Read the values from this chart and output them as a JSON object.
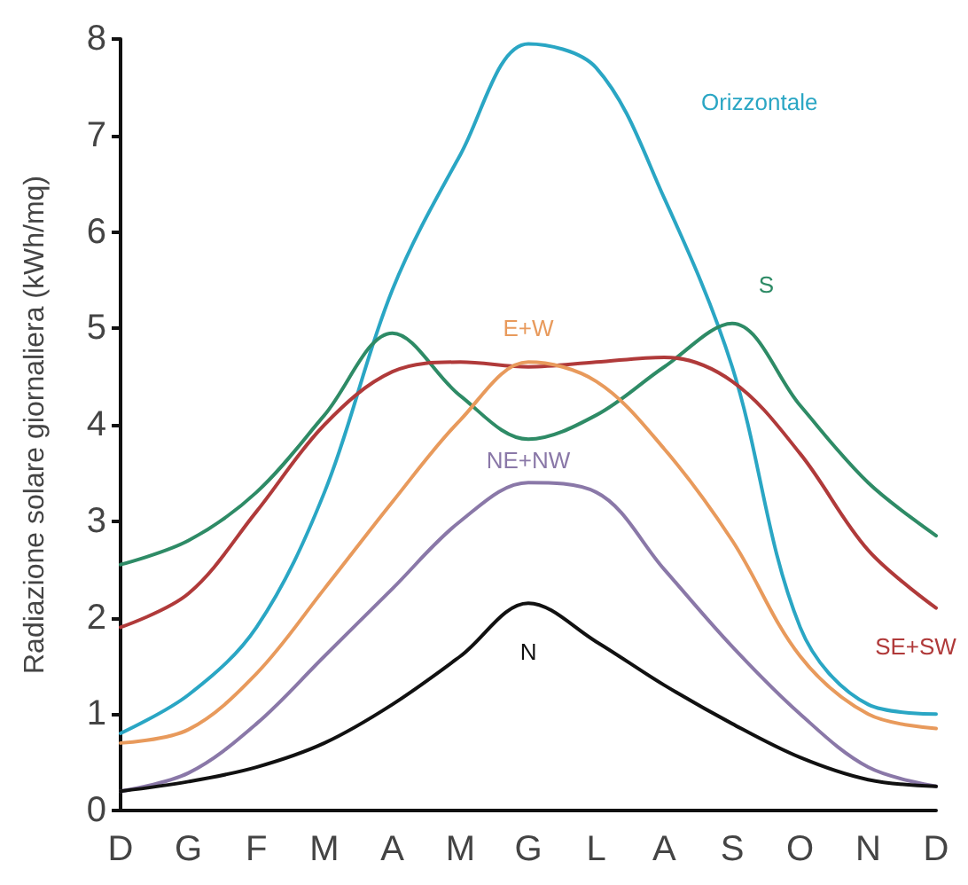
{
  "chart_data": {
    "type": "line",
    "ylabel": "Radiazione solare giornaliera (kWh/mq)",
    "categories": [
      "D",
      "G",
      "F",
      "M",
      "A",
      "M",
      "G",
      "L",
      "A",
      "S",
      "O",
      "N",
      "D"
    ],
    "ylim": [
      0,
      8
    ],
    "yticks": [
      0,
      1,
      2,
      3,
      4,
      5,
      6,
      7,
      8
    ],
    "grid": false,
    "legend": false,
    "marker": "none",
    "line_style": "solid",
    "series": [
      {
        "name": "Orizzontale",
        "color": "#2aa6c4",
        "values": [
          0.8,
          1.2,
          1.9,
          3.3,
          5.4,
          6.8,
          7.95,
          7.7,
          6.35,
          4.6,
          1.9,
          1.1,
          1.0
        ]
      },
      {
        "name": "S",
        "color": "#2e8b66",
        "values": [
          2.55,
          2.8,
          3.3,
          4.1,
          4.95,
          4.3,
          3.85,
          4.1,
          4.6,
          5.05,
          4.2,
          3.4,
          2.85
        ]
      },
      {
        "name": "SE+SW",
        "color": "#b03a3a",
        "values": [
          1.9,
          2.25,
          3.1,
          4.0,
          4.55,
          4.65,
          4.6,
          4.65,
          4.7,
          4.45,
          3.7,
          2.7,
          2.1
        ]
      },
      {
        "name": "E+W",
        "color": "#e89a5c",
        "values": [
          0.7,
          0.84,
          1.42,
          2.3,
          3.2,
          4.05,
          4.65,
          4.45,
          3.75,
          2.8,
          1.6,
          1.0,
          0.85
        ]
      },
      {
        "name": "NE+NW",
        "color": "#8a78a8",
        "values": [
          0.2,
          0.39,
          0.9,
          1.6,
          2.3,
          3.0,
          3.4,
          3.3,
          2.5,
          1.7,
          1.0,
          0.45,
          0.25
        ]
      },
      {
        "name": "N",
        "color": "#111111",
        "values": [
          0.2,
          0.3,
          0.45,
          0.7,
          1.1,
          1.6,
          2.15,
          1.75,
          1.3,
          0.9,
          0.55,
          0.32,
          0.25
        ]
      }
    ]
  }
}
